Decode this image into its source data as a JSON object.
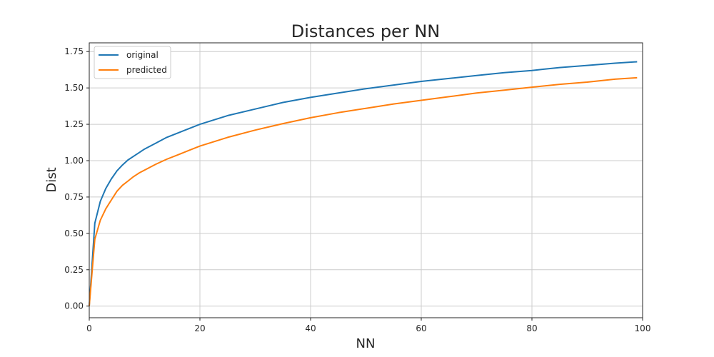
{
  "chart_data": {
    "type": "line",
    "title": "Distances per NN",
    "xlabel": "NN",
    "ylabel": "Dist",
    "xlim": [
      0,
      100
    ],
    "ylim": [
      -0.08,
      1.81
    ],
    "xticks": [
      0,
      20,
      40,
      60,
      80,
      100
    ],
    "xtick_labels": [
      "0",
      "20",
      "40",
      "60",
      "80",
      "100"
    ],
    "yticks": [
      0.0,
      0.25,
      0.5,
      0.75,
      1.0,
      1.25,
      1.5,
      1.75
    ],
    "ytick_labels": [
      "0.00",
      "0.25",
      "0.50",
      "0.75",
      "1.00",
      "1.25",
      "1.50",
      "1.75"
    ],
    "grid": true,
    "legend_position": "top-left",
    "x": [
      0,
      1,
      2,
      3,
      4,
      5,
      6,
      7,
      8,
      9,
      10,
      12,
      14,
      16,
      18,
      20,
      25,
      30,
      35,
      40,
      45,
      50,
      55,
      60,
      65,
      70,
      75,
      80,
      85,
      90,
      95,
      99
    ],
    "series": [
      {
        "name": "original",
        "color": "#1f77b4",
        "values": [
          0.0,
          0.57,
          0.72,
          0.81,
          0.875,
          0.93,
          0.97,
          1.005,
          1.03,
          1.055,
          1.08,
          1.12,
          1.16,
          1.19,
          1.22,
          1.25,
          1.31,
          1.355,
          1.4,
          1.435,
          1.465,
          1.495,
          1.52,
          1.545,
          1.565,
          1.585,
          1.605,
          1.62,
          1.64,
          1.655,
          1.67,
          1.68
        ]
      },
      {
        "name": "predicted",
        "color": "#ff7f0e",
        "values": [
          0.0,
          0.46,
          0.59,
          0.67,
          0.73,
          0.79,
          0.83,
          0.86,
          0.89,
          0.915,
          0.935,
          0.975,
          1.01,
          1.04,
          1.07,
          1.1,
          1.16,
          1.21,
          1.255,
          1.295,
          1.33,
          1.36,
          1.39,
          1.415,
          1.44,
          1.465,
          1.485,
          1.505,
          1.525,
          1.54,
          1.56,
          1.57
        ]
      }
    ]
  }
}
